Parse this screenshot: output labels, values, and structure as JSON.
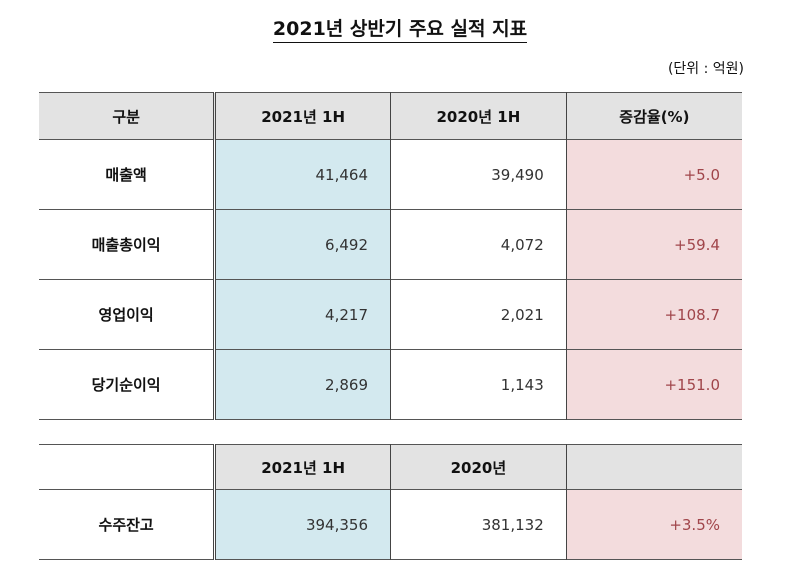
{
  "title": "2021년 상반기 주요 실적 지표",
  "unit": "(단위 : 억원)",
  "colors": {
    "header_bg": "#e3e3e3",
    "current_col_bg": "#d3e9ef",
    "change_col_bg": "#f3dcdd",
    "change_text": "#a0454a"
  },
  "table1": {
    "headers": [
      "구분",
      "2021년 1H",
      "2020년 1H",
      "증감율(%)"
    ],
    "rows": [
      {
        "label": "매출액",
        "cur": "41,464",
        "prev": "39,490",
        "change": "+5.0"
      },
      {
        "label": "매출총이익",
        "cur": "6,492",
        "prev": "4,072",
        "change": "+59.4"
      },
      {
        "label": "영업이익",
        "cur": "4,217",
        "prev": "2,021",
        "change": "+108.7"
      },
      {
        "label": "당기순이익",
        "cur": "2,869",
        "prev": "1,143",
        "change": "+151.0"
      }
    ]
  },
  "table2": {
    "headers": [
      "",
      "2021년 1H",
      "2020년",
      ""
    ],
    "rows": [
      {
        "label": "수주잔고",
        "cur": "394,356",
        "prev": "381,132",
        "change": "+3.5%"
      }
    ]
  }
}
